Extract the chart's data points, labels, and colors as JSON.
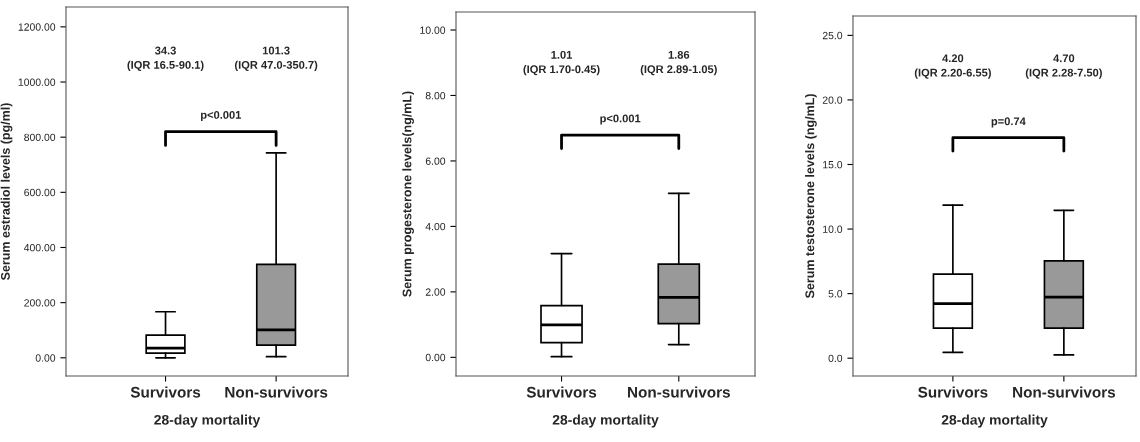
{
  "chart_data": [
    {
      "type": "box",
      "categories": [
        "Survivors",
        "Non-survivors"
      ],
      "xlabel": "28-day mortality",
      "ylabel": "Serum estradiol levels (pg/ml)",
      "boxes": [
        {
          "low": 0,
          "q1": 17,
          "median": 35,
          "q3": 82,
          "high": 167
        },
        {
          "low": 4,
          "q1": 46,
          "median": 101,
          "q3": 339,
          "high": 743
        }
      ],
      "colors": [
        "#ffffff",
        "#999999"
      ],
      "ylim": [
        -66,
        1272
      ],
      "yticks": [
        {
          "value": 0,
          "label": "0.00"
        },
        {
          "value": 200,
          "label": "200.00"
        },
        {
          "value": 400,
          "label": "400.00"
        },
        {
          "value": 600,
          "label": "600.00"
        },
        {
          "value": 800,
          "label": "800.00"
        },
        {
          "value": 1000,
          "label": "1000.00"
        },
        {
          "value": 1200,
          "label": "1200.00"
        }
      ],
      "annotations": [
        "34.3\n(IQR 16.5-90.1)",
        "101.3\n(IQR 47.0-350.7)",
        "p<0.001"
      ],
      "grid": false,
      "legend": false
    },
    {
      "type": "box",
      "categories": [
        "Survivors",
        "Non-survivors"
      ],
      "xlabel": "28-day mortality",
      "ylabel": "Serum progesterone levels(ng/mL)",
      "boxes": [
        {
          "low": 0.02,
          "q1": 0.45,
          "median": 0.99,
          "q3": 1.58,
          "high": 3.17
        },
        {
          "low": 0.39,
          "q1": 1.03,
          "median": 1.83,
          "q3": 2.85,
          "high": 5.01
        }
      ],
      "colors": [
        "#ffffff",
        "#999999"
      ],
      "ylim": [
        -0.57,
        10.55
      ],
      "yticks": [
        {
          "value": 0,
          "label": "0.00"
        },
        {
          "value": 2,
          "label": "2.00"
        },
        {
          "value": 4,
          "label": "4.00"
        },
        {
          "value": 6,
          "label": "6.00"
        },
        {
          "value": 8,
          "label": "8.00"
        },
        {
          "value": 10,
          "label": "10.00"
        }
      ],
      "annotations": [
        "1.01\n(IQR 1.70-0.45)",
        "1.86\n(IQR 2.89-1.05)",
        "p<0.001"
      ],
      "grid": false,
      "legend": false
    },
    {
      "type": "box",
      "categories": [
        "Survivors",
        "Non-survivors"
      ],
      "xlabel": "28-day mortality",
      "ylabel": "Serum testosterone levels (ng/mL)",
      "boxes": [
        {
          "low": 0.45,
          "q1": 2.33,
          "median": 4.23,
          "q3": 6.51,
          "high": 11.85
        },
        {
          "low": 0.25,
          "q1": 2.33,
          "median": 4.73,
          "q3": 7.54,
          "high": 11.45
        }
      ],
      "colors": [
        "#ffffff",
        "#999999"
      ],
      "ylim": [
        -1.38,
        26.5
      ],
      "yticks": [
        {
          "value": 0,
          "label": "0.0"
        },
        {
          "value": 5,
          "label": "5.0"
        },
        {
          "value": 10,
          "label": "10.0"
        },
        {
          "value": 15,
          "label": "15.0"
        },
        {
          "value": 20,
          "label": "20.0"
        },
        {
          "value": 25,
          "label": "25.0"
        }
      ],
      "annotations": [
        "4.20\n(IQR 2.20-6.55)",
        "4.70\n(IQR 2.28-7.50)",
        "p=0.74"
      ],
      "grid": false,
      "legend": false
    }
  ]
}
